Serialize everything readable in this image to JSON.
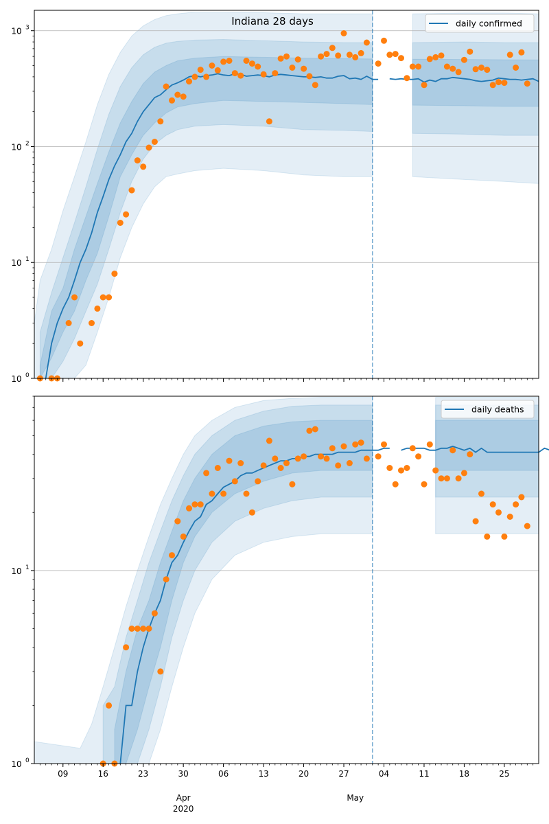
{
  "figure": {
    "title": "Indiana 28 days",
    "x_month_labels": [
      {
        "label": "Apr",
        "day_index": 26
      },
      {
        "label": "May",
        "day_index": 56
      }
    ],
    "x_year_label": {
      "label": "2020",
      "day_index": 26
    },
    "x_day_ticks": [
      {
        "label": "09",
        "day_index": 5
      },
      {
        "label": "16",
        "day_index": 12
      },
      {
        "label": "23",
        "day_index": 19
      },
      {
        "label": "30",
        "day_index": 26
      },
      {
        "label": "06",
        "day_index": 33
      },
      {
        "label": "13",
        "day_index": 40
      },
      {
        "label": "20",
        "day_index": 47
      },
      {
        "label": "27",
        "day_index": 54
      },
      {
        "label": "04",
        "day_index": 61
      },
      {
        "label": "11",
        "day_index": 68
      },
      {
        "label": "18",
        "day_index": 75
      },
      {
        "label": "25",
        "day_index": 82
      }
    ],
    "colors": {
      "line": "#1f77b4",
      "points": "#ff7f0e",
      "band": "#1f77b4",
      "grid": "#b0b0b0",
      "divider": "#1f77b4"
    }
  },
  "chart_data": [
    {
      "type": "line",
      "title": "Indiana 28 days",
      "legend": "daily confirmed",
      "legend_position": "top-right",
      "y_scale": "log",
      "ylim": [
        1,
        1500
      ],
      "y_ticks": [
        {
          "value": 1,
          "base": "10",
          "exp": "0"
        },
        {
          "value": 10,
          "base": "10",
          "exp": "1"
        },
        {
          "value": 100,
          "base": "10",
          "exp": "2"
        },
        {
          "value": 1000,
          "base": "10",
          "exp": "3"
        }
      ],
      "xlim_days": [
        0,
        88
      ],
      "forecast_start_day": 59,
      "observed_day_start": 1,
      "observed": [
        1,
        null,
        1,
        1,
        null,
        3,
        5,
        2,
        null,
        3,
        4,
        5,
        5,
        8,
        22,
        26,
        42,
        76,
        67,
        98,
        110,
        165,
        330,
        250,
        280,
        270,
        365,
        400,
        460,
        400,
        500,
        455,
        540,
        550,
        430,
        410,
        550,
        520,
        490,
        420,
        165,
        430,
        575,
        600,
        480,
        565,
        470,
        405,
        340,
        600,
        630,
        710,
        610,
        950,
        620,
        590,
        640,
        790,
        null,
        520,
        820,
        620,
        630,
        580,
        390,
        490,
        490,
        340,
        570,
        590,
        610,
        490,
        470,
        440,
        560,
        660,
        465,
        480,
        460,
        340,
        360,
        355,
        620,
        480,
        650,
        350
      ],
      "median_day_start": 2,
      "median": [
        1,
        2,
        3,
        4,
        5,
        7,
        10,
        13,
        18,
        27,
        37,
        52,
        68,
        85,
        110,
        130,
        165,
        200,
        230,
        265,
        280,
        310,
        340,
        355,
        375,
        400,
        410,
        400,
        410,
        415,
        425,
        415,
        410,
        425,
        420,
        405,
        410,
        415,
        410,
        400,
        415,
        420,
        415,
        410,
        405,
        400,
        400,
        395,
        400,
        390,
        390,
        405,
        410,
        385,
        390,
        380,
        405,
        380,
        380,
        null,
        385,
        380,
        385,
        380,
        380,
        385,
        360,
        375,
        365,
        385,
        385,
        395,
        390,
        385,
        380,
        370,
        365,
        370,
        375,
        390,
        385,
        380,
        380,
        375,
        380,
        385,
        365
      ],
      "band_inner": [
        {
          "day": 1,
          "lo": 1,
          "hi": 1.3
        },
        {
          "day": 3,
          "lo": 1.5,
          "hi": 3.8
        },
        {
          "day": 5,
          "lo": 2.5,
          "hi": 6
        },
        {
          "day": 7,
          "lo": 3.8,
          "hi": 13
        },
        {
          "day": 9,
          "lo": 7,
          "hi": 25
        },
        {
          "day": 11,
          "lo": 12,
          "hi": 48
        },
        {
          "day": 13,
          "lo": 25,
          "hi": 90
        },
        {
          "day": 15,
          "lo": 55,
          "hi": 160
        },
        {
          "day": 17,
          "lo": 85,
          "hi": 245
        },
        {
          "day": 19,
          "lo": 125,
          "hi": 350
        },
        {
          "day": 21,
          "lo": 160,
          "hi": 440
        },
        {
          "day": 23,
          "lo": 195,
          "hi": 500
        },
        {
          "day": 25,
          "lo": 220,
          "hi": 550
        },
        {
          "day": 28,
          "lo": 235,
          "hi": 580
        },
        {
          "day": 33,
          "lo": 250,
          "hi": 600
        },
        {
          "day": 40,
          "lo": 245,
          "hi": 590
        },
        {
          "day": 47,
          "lo": 240,
          "hi": 580
        },
        {
          "day": 54,
          "lo": 235,
          "hi": 575
        },
        {
          "day": 59,
          "lo": 230,
          "hi": 570
        },
        {
          "day": 66,
          "lo": 228,
          "hi": 568
        },
        {
          "day": 75,
          "lo": 225,
          "hi": 565
        },
        {
          "day": 82,
          "lo": 222,
          "hi": 562
        },
        {
          "day": 88,
          "lo": 222,
          "hi": 560
        }
      ],
      "band_mid": [
        {
          "day": 1,
          "lo": 1,
          "hi": 2.5
        },
        {
          "day": 3,
          "lo": 1,
          "hi": 5.5
        },
        {
          "day": 5,
          "lo": 1.4,
          "hi": 11
        },
        {
          "day": 7,
          "lo": 2.2,
          "hi": 22
        },
        {
          "day": 9,
          "lo": 3.8,
          "hi": 45
        },
        {
          "day": 11,
          "lo": 6.5,
          "hi": 95
        },
        {
          "day": 13,
          "lo": 13,
          "hi": 190
        },
        {
          "day": 15,
          "lo": 27,
          "hi": 330
        },
        {
          "day": 17,
          "lo": 50,
          "hi": 480
        },
        {
          "day": 19,
          "lo": 78,
          "hi": 620
        },
        {
          "day": 21,
          "lo": 105,
          "hi": 720
        },
        {
          "day": 23,
          "lo": 125,
          "hi": 780
        },
        {
          "day": 25,
          "lo": 140,
          "hi": 810
        },
        {
          "day": 28,
          "lo": 150,
          "hi": 830
        },
        {
          "day": 33,
          "lo": 155,
          "hi": 840
        },
        {
          "day": 40,
          "lo": 150,
          "hi": 820
        },
        {
          "day": 47,
          "lo": 140,
          "hi": 800
        },
        {
          "day": 54,
          "lo": 138,
          "hi": 790
        },
        {
          "day": 59,
          "lo": 135,
          "hi": 790
        },
        {
          "day": 66,
          "lo": 130,
          "hi": 790
        },
        {
          "day": 75,
          "lo": 128,
          "hi": 800
        },
        {
          "day": 82,
          "lo": 125,
          "hi": 790
        },
        {
          "day": 88,
          "lo": 125,
          "hi": 790
        }
      ],
      "band_outer": [
        {
          "day": 0,
          "lo": 1,
          "hi": 3
        },
        {
          "day": 1,
          "lo": 1,
          "hi": 7
        },
        {
          "day": 3,
          "lo": 1,
          "hi": 13
        },
        {
          "day": 5,
          "lo": 1,
          "hi": 28
        },
        {
          "day": 7,
          "lo": 1,
          "hi": 55
        },
        {
          "day": 9,
          "lo": 1.3,
          "hi": 110
        },
        {
          "day": 11,
          "lo": 2.5,
          "hi": 230
        },
        {
          "day": 13,
          "lo": 5,
          "hi": 420
        },
        {
          "day": 15,
          "lo": 11,
          "hi": 650
        },
        {
          "day": 17,
          "lo": 20,
          "hi": 900
        },
        {
          "day": 19,
          "lo": 32,
          "hi": 1100
        },
        {
          "day": 21,
          "lo": 45,
          "hi": 1250
        },
        {
          "day": 23,
          "lo": 55,
          "hi": 1350
        },
        {
          "day": 25,
          "lo": 58,
          "hi": 1400
        },
        {
          "day": 28,
          "lo": 62,
          "hi": 1450
        },
        {
          "day": 33,
          "lo": 65,
          "hi": 1450
        },
        {
          "day": 40,
          "lo": 62,
          "hi": 1430
        },
        {
          "day": 47,
          "lo": 57,
          "hi": 1400
        },
        {
          "day": 54,
          "lo": 55,
          "hi": 1400
        },
        {
          "day": 59,
          "lo": 55,
          "hi": 1400
        },
        {
          "day": 66,
          "lo": 55,
          "hi": 1400
        },
        {
          "day": 75,
          "lo": 52,
          "hi": 1420
        },
        {
          "day": 82,
          "lo": 50,
          "hi": 1420
        },
        {
          "day": 88,
          "lo": 48,
          "hi": 1400
        }
      ]
    },
    {
      "type": "line",
      "legend": "daily deaths",
      "legend_position": "top-right",
      "y_scale": "log",
      "ylim": [
        1,
        80
      ],
      "y_ticks": [
        {
          "value": 1,
          "base": "10",
          "exp": "0"
        },
        {
          "value": 10,
          "base": "10",
          "exp": "1"
        }
      ],
      "xlim_days": [
        0,
        88
      ],
      "forecast_start_day": 59,
      "observed_day_start": 12,
      "observed": [
        1,
        2,
        1,
        null,
        4,
        5,
        5,
        5,
        5,
        6,
        3,
        9,
        12,
        18,
        15,
        21,
        22,
        22,
        32,
        25,
        34,
        25,
        37,
        29,
        36,
        25,
        20,
        29,
        35,
        47,
        38,
        34,
        36,
        28,
        38,
        39,
        53,
        54,
        39,
        38,
        43,
        35,
        44,
        36,
        45,
        46,
        38,
        null,
        39,
        45,
        34,
        28,
        33,
        34,
        43,
        39,
        28,
        45,
        33,
        30,
        30,
        42,
        30,
        32,
        40,
        18,
        25,
        15,
        22,
        20,
        15,
        19,
        22,
        24,
        17
      ],
      "median_day_start": 15,
      "median": [
        1,
        2,
        2,
        3,
        4,
        5,
        6,
        7,
        9,
        11,
        12,
        14,
        16,
        18,
        19,
        22,
        23,
        25,
        27,
        28,
        29,
        31,
        32,
        32,
        33,
        34,
        35,
        36,
        37,
        37,
        38,
        38,
        39,
        39,
        40,
        40,
        40,
        40,
        41,
        41,
        41,
        41,
        42,
        42,
        42,
        42,
        43,
        43,
        null,
        42,
        43,
        43,
        43,
        43,
        42,
        42,
        43,
        43,
        44,
        43,
        42,
        43,
        41,
        43,
        41,
        41,
        41,
        41,
        41,
        41,
        41,
        41,
        41,
        41,
        43,
        42
      ],
      "band_inner": [
        {
          "day": 14,
          "lo": 1,
          "hi": 1.5
        },
        {
          "day": 16,
          "lo": 1,
          "hi": 3
        },
        {
          "day": 18,
          "lo": 1.5,
          "hi": 5
        },
        {
          "day": 20,
          "lo": 2.5,
          "hi": 7
        },
        {
          "day": 22,
          "lo": 4,
          "hi": 11
        },
        {
          "day": 24,
          "lo": 7,
          "hi": 16
        },
        {
          "day": 26,
          "lo": 11,
          "hi": 23
        },
        {
          "day": 28,
          "lo": 15,
          "hi": 30
        },
        {
          "day": 31,
          "lo": 20,
          "hi": 40
        },
        {
          "day": 35,
          "lo": 25,
          "hi": 50
        },
        {
          "day": 40,
          "lo": 29,
          "hi": 56
        },
        {
          "day": 45,
          "lo": 32,
          "hi": 59
        },
        {
          "day": 50,
          "lo": 33,
          "hi": 60
        },
        {
          "day": 55,
          "lo": 33,
          "hi": 60
        },
        {
          "day": 59,
          "lo": 33,
          "hi": 60
        },
        {
          "day": 70,
          "lo": 33,
          "hi": 60
        },
        {
          "day": 88,
          "lo": 33,
          "hi": 60
        }
      ],
      "band_mid": [
        {
          "day": 12,
          "lo": 1,
          "hi": 2
        },
        {
          "day": 14,
          "lo": 1,
          "hi": 2.5
        },
        {
          "day": 16,
          "lo": 1,
          "hi": 4.5
        },
        {
          "day": 18,
          "lo": 1,
          "hi": 7
        },
        {
          "day": 20,
          "lo": 1.5,
          "hi": 11
        },
        {
          "day": 22,
          "lo": 2.5,
          "hi": 16
        },
        {
          "day": 24,
          "lo": 4.5,
          "hi": 23
        },
        {
          "day": 26,
          "lo": 7,
          "hi": 31
        },
        {
          "day": 28,
          "lo": 10,
          "hi": 40
        },
        {
          "day": 31,
          "lo": 14,
          "hi": 50
        },
        {
          "day": 35,
          "lo": 18,
          "hi": 60
        },
        {
          "day": 40,
          "lo": 21,
          "hi": 67
        },
        {
          "day": 45,
          "lo": 23,
          "hi": 71
        },
        {
          "day": 50,
          "lo": 24,
          "hi": 72
        },
        {
          "day": 55,
          "lo": 24,
          "hi": 72
        },
        {
          "day": 59,
          "lo": 24,
          "hi": 72
        },
        {
          "day": 70,
          "lo": 24,
          "hi": 72
        },
        {
          "day": 88,
          "lo": 24,
          "hi": 72
        }
      ],
      "band_outer": [
        {
          "day": 0,
          "lo": 1,
          "hi": 1.3
        },
        {
          "day": 8,
          "lo": 1,
          "hi": 1.2
        },
        {
          "day": 10,
          "lo": 1,
          "hi": 1.6
        },
        {
          "day": 12,
          "lo": 1,
          "hi": 2.5
        },
        {
          "day": 14,
          "lo": 1,
          "hi": 4
        },
        {
          "day": 16,
          "lo": 1,
          "hi": 6.5
        },
        {
          "day": 18,
          "lo": 1,
          "hi": 10
        },
        {
          "day": 20,
          "lo": 1,
          "hi": 15
        },
        {
          "day": 22,
          "lo": 1.5,
          "hi": 22
        },
        {
          "day": 24,
          "lo": 2.5,
          "hi": 30
        },
        {
          "day": 26,
          "lo": 4,
          "hi": 40
        },
        {
          "day": 28,
          "lo": 6,
          "hi": 50
        },
        {
          "day": 31,
          "lo": 9,
          "hi": 60
        },
        {
          "day": 35,
          "lo": 12,
          "hi": 70
        },
        {
          "day": 40,
          "lo": 14,
          "hi": 76
        },
        {
          "day": 45,
          "lo": 15,
          "hi": 78
        },
        {
          "day": 50,
          "lo": 15.5,
          "hi": 79
        },
        {
          "day": 59,
          "lo": 15.5,
          "hi": 79
        },
        {
          "day": 70,
          "lo": 15.5,
          "hi": 79
        },
        {
          "day": 88,
          "lo": 15.5,
          "hi": 79
        }
      ]
    }
  ]
}
